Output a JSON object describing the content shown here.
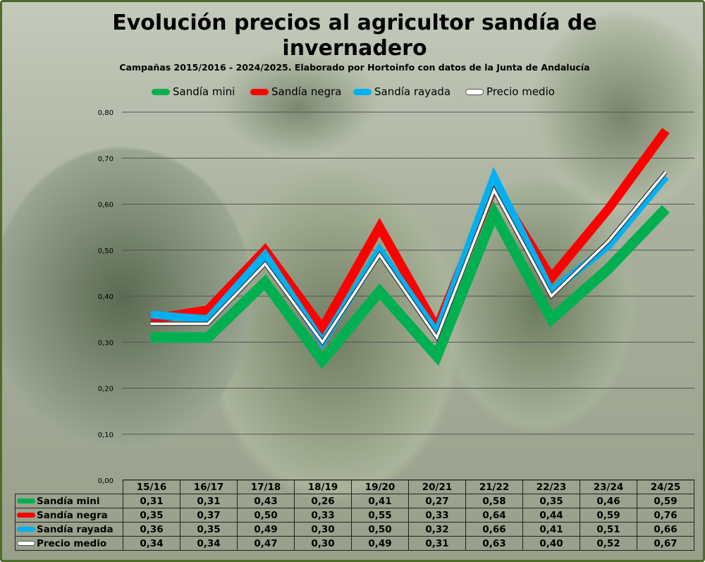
{
  "title": "Evolución precios al agricultor sandía de invernadero",
  "subtitle": "Campañas 2015/2016 - 2024/2025. Elaborado por Hortoinfo con datos de la Junta de Andalucía",
  "colors": {
    "mini": "#00b050",
    "negra": "#ff0000",
    "rayada": "#00b0f0",
    "medio": "#ffffff"
  },
  "chart_data": {
    "type": "line",
    "title": "Evolución precios al agricultor sandía de invernadero",
    "subtitle": "Campañas 2015/2016 - 2024/2025. Elaborado por Hortoinfo con datos de la Junta de Andalucía",
    "categories": [
      "15/16",
      "16/17",
      "17/18",
      "18/19",
      "19/20",
      "20/21",
      "21/22",
      "22/23",
      "23/24",
      "24/25"
    ],
    "ylim": [
      0,
      0.8
    ],
    "yticks": [
      "0,00",
      "0,10",
      "0,20",
      "0,30",
      "0,40",
      "0,50",
      "0,60",
      "0,70",
      "0,80"
    ],
    "grid": true,
    "legend_position": "top",
    "series": [
      {
        "name": "Sandía mini",
        "values": [
          0.31,
          0.31,
          0.43,
          0.26,
          0.41,
          0.27,
          0.58,
          0.35,
          0.46,
          0.59
        ]
      },
      {
        "name": "Sandía negra",
        "values": [
          0.35,
          0.37,
          0.5,
          0.33,
          0.55,
          0.33,
          0.64,
          0.44,
          0.59,
          0.76
        ]
      },
      {
        "name": "Sandía rayada",
        "values": [
          0.36,
          0.35,
          0.49,
          0.3,
          0.5,
          0.32,
          0.66,
          0.41,
          0.51,
          0.66
        ]
      },
      {
        "name": "Precio medio",
        "values": [
          0.34,
          0.34,
          0.47,
          0.3,
          0.49,
          0.31,
          0.63,
          0.4,
          0.52,
          0.67
        ]
      }
    ],
    "table_values": [
      [
        "0,31",
        "0,31",
        "0,43",
        "0,26",
        "0,41",
        "0,27",
        "0,58",
        "0,35",
        "0,46",
        "0,59"
      ],
      [
        "0,35",
        "0,37",
        "0,50",
        "0,33",
        "0,55",
        "0,33",
        "0,64",
        "0,44",
        "0,59",
        "0,76"
      ],
      [
        "0,36",
        "0,35",
        "0,49",
        "0,30",
        "0,50",
        "0,32",
        "0,66",
        "0,41",
        "0,51",
        "0,66"
      ],
      [
        "0,34",
        "0,34",
        "0,47",
        "0,30",
        "0,49",
        "0,31",
        "0,63",
        "0,40",
        "0,52",
        "0,67"
      ]
    ]
  }
}
